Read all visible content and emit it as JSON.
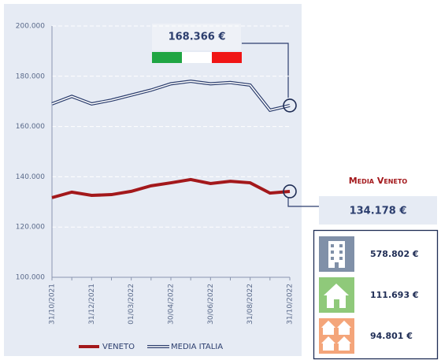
{
  "chart_data": {
    "type": "line",
    "categories": [
      "31/10/2021",
      null,
      "31/12/2021",
      null,
      "01/03/2022",
      null,
      "30/04/2022",
      null,
      "30/06/2022",
      null,
      "31/08/2022",
      null,
      "31/10/2022"
    ],
    "series": [
      {
        "name": "VENETO",
        "color": "#a3181b",
        "values": [
          131700,
          133900,
          132600,
          132900,
          134200,
          136400,
          137600,
          138900,
          137300,
          138200,
          137600,
          133500,
          134178
        ],
        "value_labels": [
          null,
          null,
          null,
          null,
          null,
          null,
          null,
          null,
          null,
          null,
          null,
          null,
          "134.178 €"
        ]
      },
      {
        "name": "MEDIA ITALIA",
        "color": "#2c3e6e",
        "values": [
          169000,
          172000,
          169000,
          170500,
          172500,
          174500,
          177000,
          178000,
          177000,
          177500,
          176500,
          166500,
          168366
        ],
        "value_labels": [
          null,
          null,
          null,
          null,
          null,
          null,
          null,
          null,
          null,
          null,
          null,
          null,
          "168.366 €"
        ]
      }
    ],
    "ylim": [
      100000,
      200000
    ],
    "yticks": [
      {
        "value": 100000,
        "label": "100.000"
      },
      {
        "value": 120000,
        "label": "120.000"
      },
      {
        "value": 140000,
        "label": "140.000"
      },
      {
        "value": 160000,
        "label": "160.000"
      },
      {
        "value": 180000,
        "label": "180.000"
      },
      {
        "value": 200000,
        "label": "200.000"
      }
    ],
    "grid": true
  },
  "veneto_panel": {
    "title": "Media Veneto"
  },
  "price_cards": [
    "578.802 €",
    "111.693 €",
    "94.801 €"
  ]
}
